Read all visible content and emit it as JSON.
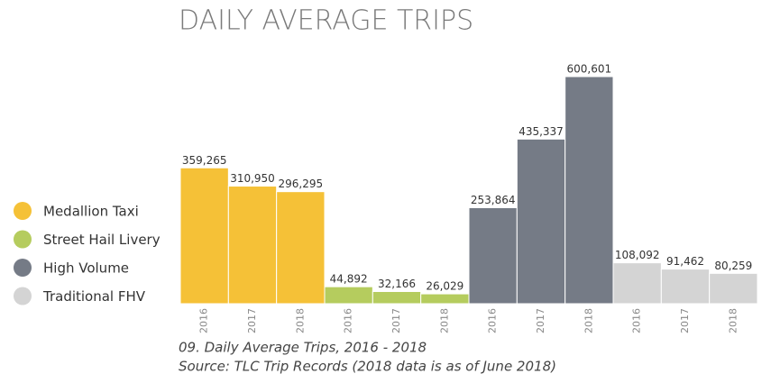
{
  "chart_data": {
    "type": "bar",
    "title": "DAILY AVERAGE TRIPS",
    "categories": [
      "2016",
      "2017",
      "2018"
    ],
    "series": [
      {
        "name": "Medallion Taxi",
        "color": "#f5c137",
        "values": [
          359265,
          310950,
          296295
        ],
        "value_labels": [
          "359,265",
          "310,950",
          "296,295"
        ]
      },
      {
        "name": "Street Hail Livery",
        "color": "#b5cc5e",
        "values": [
          44892,
          32166,
          26029
        ],
        "value_labels": [
          "44,892",
          "32,166",
          "26,029"
        ]
      },
      {
        "name": "High Volume",
        "color": "#757b86",
        "values": [
          253864,
          435337,
          600601
        ],
        "value_labels": [
          "253,864",
          "435,337",
          "600,601"
        ]
      },
      {
        "name": "Traditional FHV",
        "color": "#d4d4d4",
        "values": [
          108092,
          91462,
          80259
        ],
        "value_labels": [
          "108,092",
          "91,462",
          "80,259"
        ]
      }
    ],
    "caption": "09. Daily Average Trips, 2016 - 2018",
    "source": "Source: TLC Trip Records (2018 data is as of June 2018)"
  }
}
